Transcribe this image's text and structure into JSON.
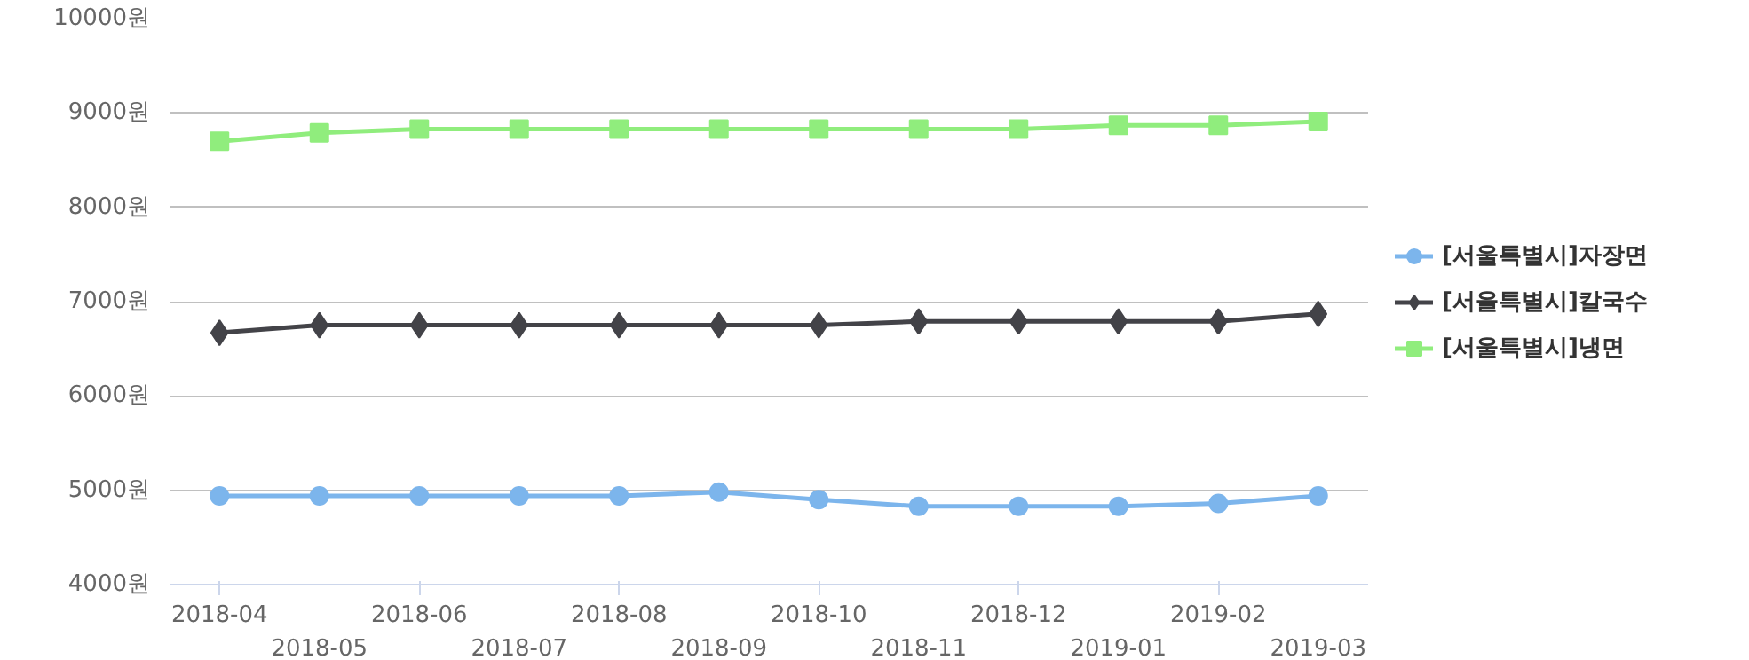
{
  "chart_data": {
    "type": "line",
    "categories": [
      "2018-04",
      "2018-05",
      "2018-06",
      "2018-07",
      "2018-08",
      "2018-09",
      "2018-10",
      "2018-11",
      "2018-12",
      "2019-01",
      "2019-02",
      "2019-03"
    ],
    "series": [
      {
        "name": "[서울특별시]자장면",
        "color": "#7cb5ec",
        "marker": "circle",
        "values": [
          4940,
          4940,
          4940,
          4940,
          4940,
          4980,
          4900,
          4830,
          4830,
          4830,
          4860,
          4940
        ]
      },
      {
        "name": "[서울특별시]칼국수",
        "color": "#434348",
        "marker": "diamond",
        "values": [
          6670,
          6750,
          6750,
          6750,
          6750,
          6750,
          6750,
          6790,
          6790,
          6790,
          6790,
          6870
        ]
      },
      {
        "name": "[서울특별시]냉면",
        "color": "#90ed7d",
        "marker": "square",
        "values": [
          8700,
          8790,
          8830,
          8830,
          8830,
          8830,
          8830,
          8830,
          8830,
          8870,
          8870,
          8910
        ]
      }
    ],
    "ylim": [
      4000,
      10000
    ],
    "yticks": [
      {
        "value": 4000,
        "label": "4000원"
      },
      {
        "value": 5000,
        "label": "5000원"
      },
      {
        "value": 6000,
        "label": "6000원"
      },
      {
        "value": 7000,
        "label": "7000원"
      },
      {
        "value": 8000,
        "label": "8000원"
      },
      {
        "value": 9000,
        "label": "9000원"
      },
      {
        "value": 10000,
        "label": "10000원"
      }
    ],
    "grid": "y",
    "legend": "right",
    "line_style": "solid"
  }
}
